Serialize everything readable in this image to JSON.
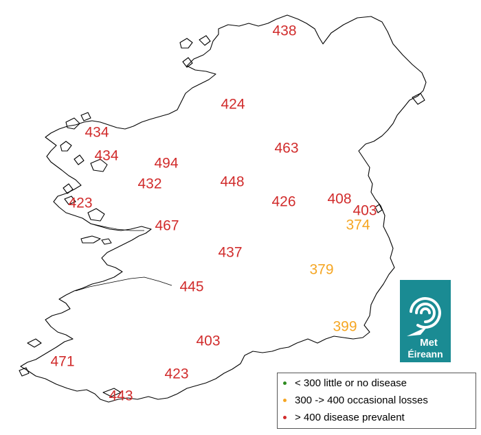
{
  "colors": {
    "above_400": "#d12c2c",
    "between_300_400": "#f5a623",
    "below_300": "#2e8b20",
    "coast": "#000000",
    "logo_bg": "#1a8b93"
  },
  "logo": {
    "line1": "Met",
    "line2": "Éireann",
    "icon": "swirl-icon"
  },
  "legend": {
    "items": [
      {
        "label": "< 300  little or no disease",
        "color": "#2e8b20"
      },
      {
        "label": "300 -> 400  occasional losses",
        "color": "#f5a623"
      },
      {
        "label": "> 400  disease prevalent",
        "color": "#d12c2c"
      }
    ]
  },
  "stations": [
    {
      "value": "438",
      "category": "above_400"
    },
    {
      "value": "424",
      "category": "above_400"
    },
    {
      "value": "434",
      "category": "above_400"
    },
    {
      "value": "434",
      "category": "above_400"
    },
    {
      "value": "463",
      "category": "above_400"
    },
    {
      "value": "494",
      "category": "above_400"
    },
    {
      "value": "432",
      "category": "above_400"
    },
    {
      "value": "448",
      "category": "above_400"
    },
    {
      "value": "423",
      "category": "above_400"
    },
    {
      "value": "426",
      "category": "above_400"
    },
    {
      "value": "408",
      "category": "above_400"
    },
    {
      "value": "403",
      "category": "above_400"
    },
    {
      "value": "374",
      "category": "between_300_400"
    },
    {
      "value": "467",
      "category": "above_400"
    },
    {
      "value": "437",
      "category": "above_400"
    },
    {
      "value": "379",
      "category": "between_300_400"
    },
    {
      "value": "445",
      "category": "above_400"
    },
    {
      "value": "399",
      "category": "between_300_400"
    },
    {
      "value": "403",
      "category": "above_400"
    },
    {
      "value": "471",
      "category": "above_400"
    },
    {
      "value": "423",
      "category": "above_400"
    },
    {
      "value": "443",
      "category": "above_400"
    }
  ]
}
